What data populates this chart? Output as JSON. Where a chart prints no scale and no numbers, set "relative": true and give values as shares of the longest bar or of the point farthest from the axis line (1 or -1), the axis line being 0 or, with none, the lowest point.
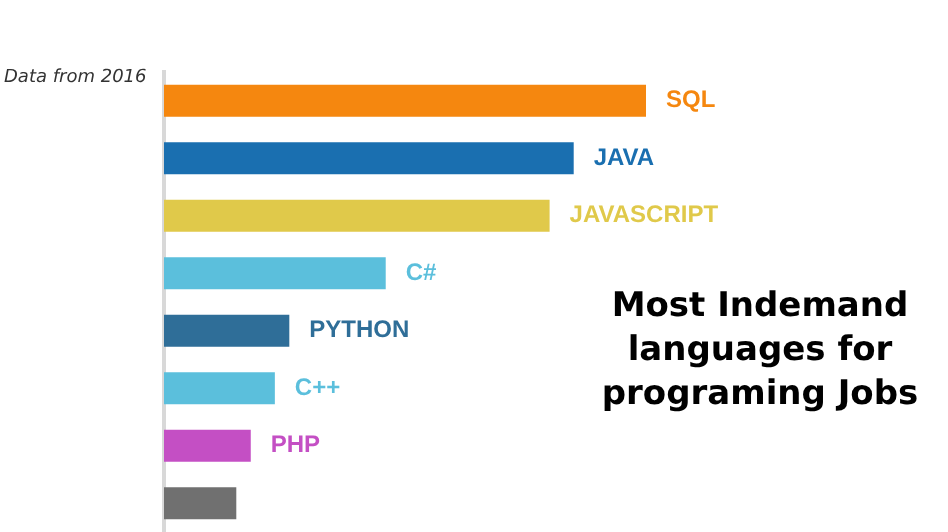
{
  "chart_data": {
    "type": "bar",
    "orientation": "horizontal",
    "relative": true,
    "title": "Most Indemand languages for programing Jobs",
    "annotations": [
      "Data from 2016"
    ],
    "categories": [
      "SQL",
      "JAVA",
      "JAVASCRIPT",
      "C#",
      "PYTHON",
      "C++",
      "PHP",
      null
    ],
    "values": [
      1,
      0.85,
      0.8,
      0.46,
      0.26,
      0.23,
      0.18,
      0.15
    ],
    "colors": [
      "#f5870f",
      "#1a6fb0",
      "#e0c94a",
      "#5bbfdc",
      "#2f6e98",
      "#5bbfdc",
      "#c44fc4",
      "#707070"
    ],
    "grid": false,
    "legend": false
  }
}
